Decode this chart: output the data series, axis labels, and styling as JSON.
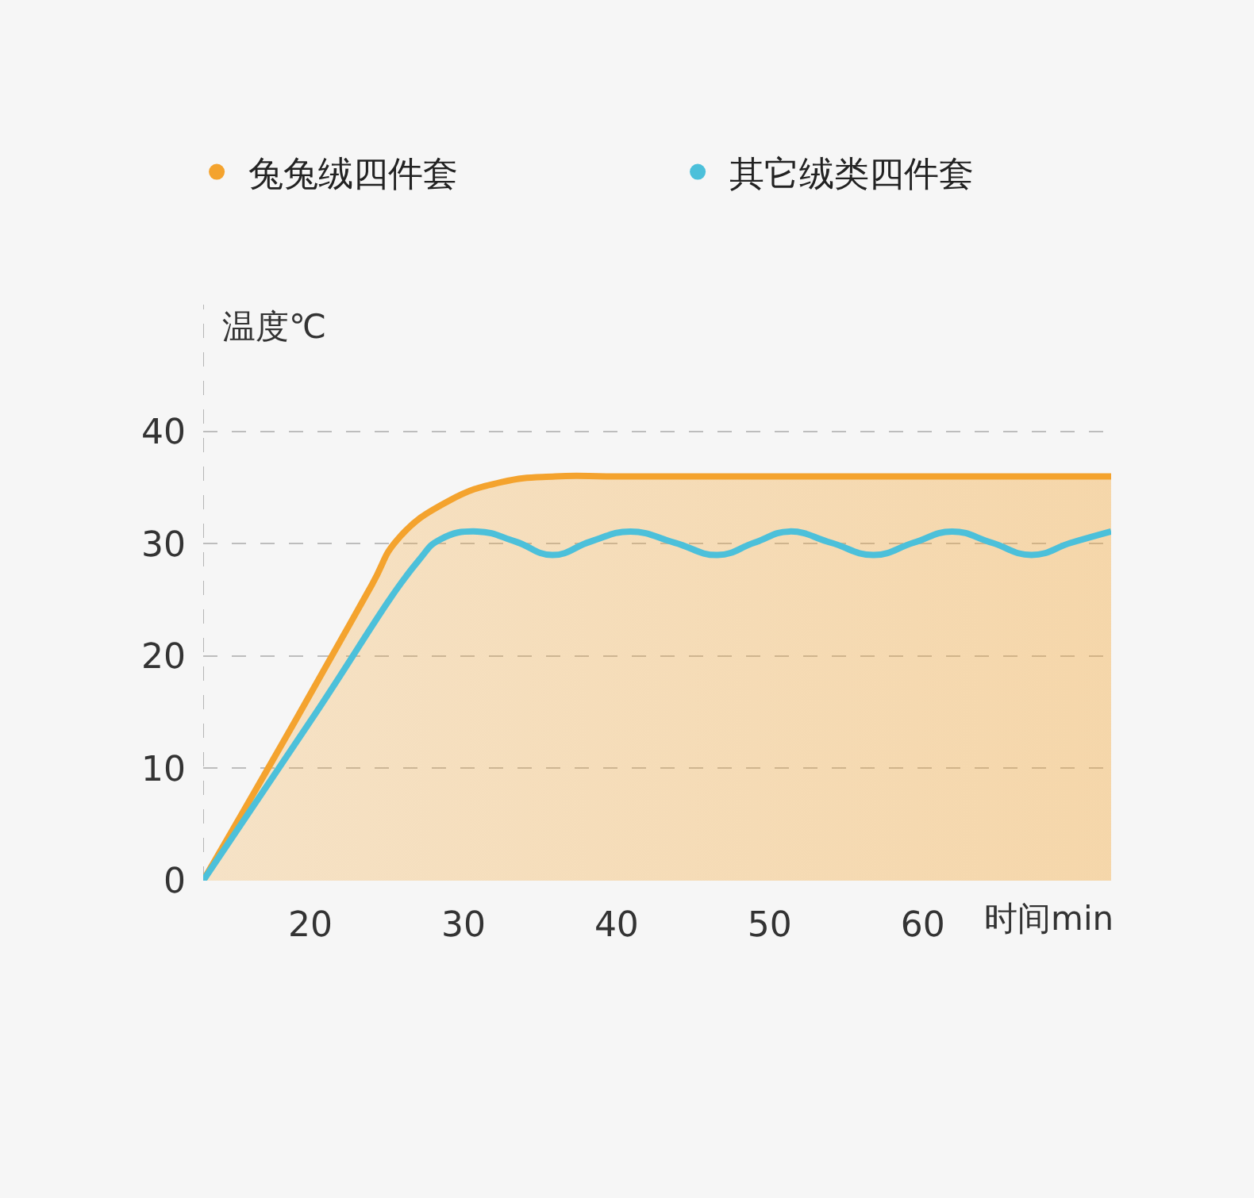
{
  "chart_data": {
    "type": "line",
    "series": [
      {
        "name": "兔兔绒四件套",
        "type": "area",
        "color": "#f4a32e",
        "x": [
          13,
          19,
          24,
          25.7,
          29,
          32.5,
          36,
          40,
          50,
          60,
          72.3
        ],
        "values": [
          0,
          14.2,
          26.3,
          30.4,
          33.8,
          35.5,
          36,
          36,
          36,
          36,
          36
        ]
      },
      {
        "name": "其它绒类四件套",
        "color": "#4cc0da",
        "x": [
          13,
          20,
          27,
          28.5,
          30.9,
          33.4,
          35.8,
          38.3,
          40.9,
          43.8,
          46.6,
          49,
          51.3,
          54,
          56.8,
          59.4,
          61.9,
          64.5,
          67.1,
          69.7,
          72.3
        ],
        "values": [
          0,
          14.2,
          28.4,
          30.4,
          31.1,
          30.2,
          29,
          30.2,
          31.1,
          30.1,
          29,
          30.1,
          31.1,
          30.1,
          29,
          30.1,
          31.1,
          30.1,
          29,
          30.1,
          31.1
        ]
      }
    ],
    "xlabel": "时间min",
    "ylabel": "温度℃",
    "xlim": [
      13,
      72.3
    ],
    "xticks": [
      20,
      30,
      40,
      50,
      60
    ],
    "ylim": [
      0,
      51.3
    ],
    "yticks": [
      0,
      10,
      20,
      30,
      40
    ],
    "grid": "y",
    "legend": "top"
  }
}
